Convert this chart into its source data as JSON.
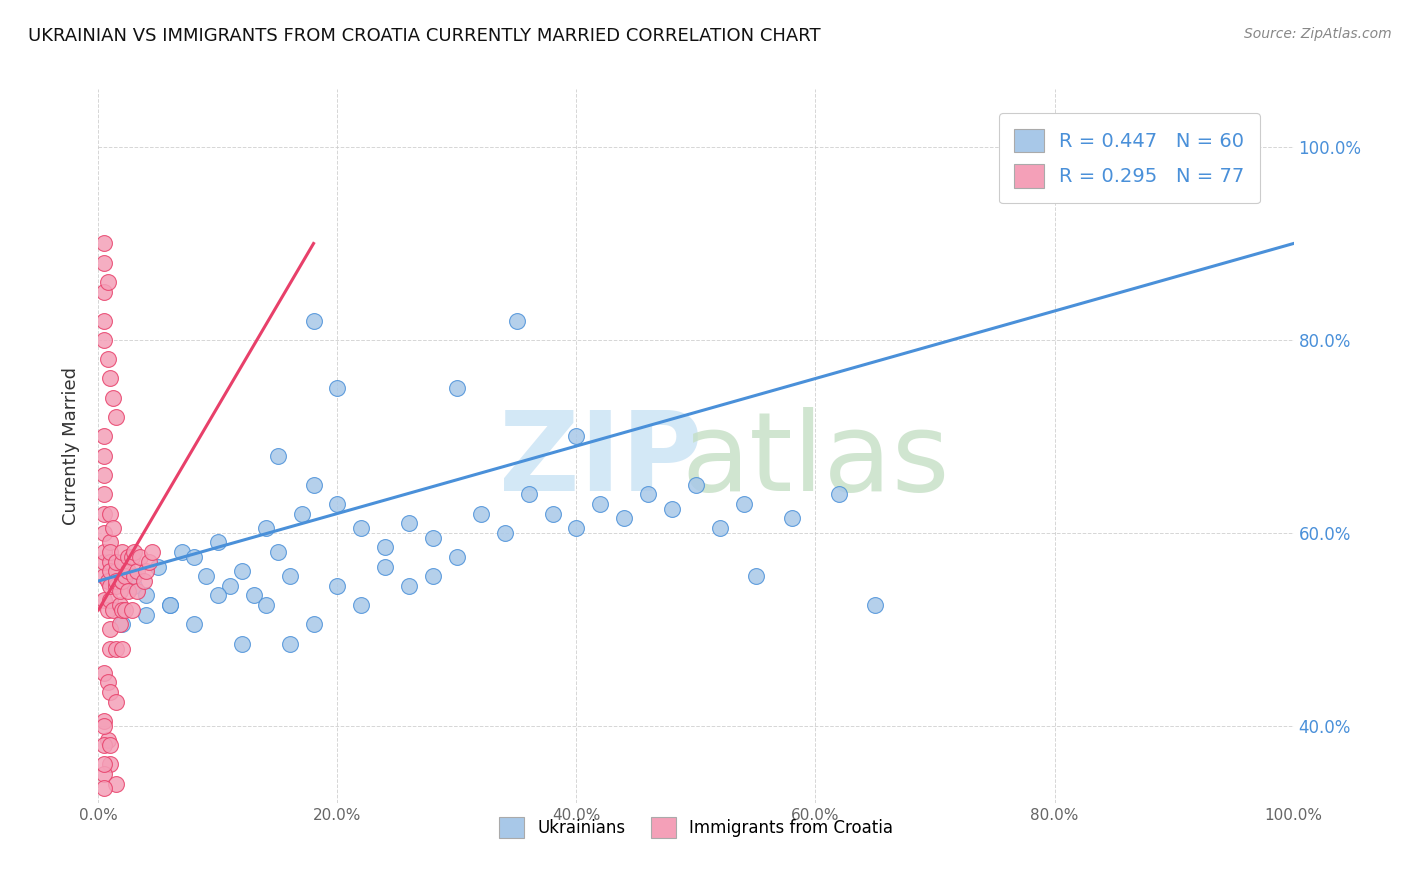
{
  "title": "UKRAINIAN VS IMMIGRANTS FROM CROATIA CURRENTLY MARRIED CORRELATION CHART",
  "source": "Source: ZipAtlas.com",
  "ylabel": "Currently Married",
  "xlim": [
    0.0,
    1.0
  ],
  "ylim": [
    0.32,
    1.06
  ],
  "x_tick_labels": [
    "0.0%",
    "20.0%",
    "40.0%",
    "60.0%",
    "80.0%",
    "100.0%"
  ],
  "x_tick_vals": [
    0.0,
    0.2,
    0.4,
    0.6,
    0.8,
    1.0
  ],
  "y_tick_labels": [
    "40.0%",
    "60.0%",
    "80.0%",
    "100.0%"
  ],
  "y_tick_vals": [
    0.4,
    0.6,
    0.8,
    1.0
  ],
  "blue_R": 0.447,
  "blue_N": 60,
  "pink_R": 0.295,
  "pink_N": 77,
  "blue_color": "#a8c8e8",
  "pink_color": "#f4a0b8",
  "blue_line_color": "#4a90d9",
  "pink_line_color": "#e8406a",
  "blue_scatter_x": [
    0.02,
    0.03,
    0.04,
    0.05,
    0.06,
    0.07,
    0.08,
    0.09,
    0.1,
    0.11,
    0.12,
    0.13,
    0.14,
    0.15,
    0.16,
    0.17,
    0.18,
    0.2,
    0.22,
    0.24,
    0.26,
    0.28,
    0.3,
    0.32,
    0.34,
    0.36,
    0.38,
    0.4,
    0.42,
    0.44,
    0.46,
    0.48,
    0.5,
    0.52,
    0.54,
    0.58,
    0.62,
    0.02,
    0.04,
    0.06,
    0.08,
    0.1,
    0.12,
    0.14,
    0.16,
    0.18,
    0.2,
    0.22,
    0.24,
    0.26,
    0.28,
    0.55,
    0.65,
    0.9,
    0.3,
    0.35,
    0.4,
    0.2,
    0.18,
    0.15
  ],
  "blue_scatter_y": [
    0.555,
    0.545,
    0.535,
    0.565,
    0.525,
    0.58,
    0.575,
    0.555,
    0.59,
    0.545,
    0.56,
    0.535,
    0.605,
    0.58,
    0.555,
    0.62,
    0.65,
    0.63,
    0.605,
    0.585,
    0.61,
    0.595,
    0.575,
    0.62,
    0.6,
    0.64,
    0.62,
    0.605,
    0.63,
    0.615,
    0.64,
    0.625,
    0.65,
    0.605,
    0.63,
    0.615,
    0.64,
    0.505,
    0.515,
    0.525,
    0.505,
    0.535,
    0.485,
    0.525,
    0.485,
    0.505,
    0.545,
    0.525,
    0.565,
    0.545,
    0.555,
    0.555,
    0.525,
    1.0,
    0.75,
    0.82,
    0.7,
    0.75,
    0.82,
    0.68
  ],
  "pink_scatter_x": [
    0.005,
    0.005,
    0.005,
    0.005,
    0.005,
    0.005,
    0.005,
    0.005,
    0.008,
    0.008,
    0.01,
    0.01,
    0.01,
    0.01,
    0.01,
    0.01,
    0.01,
    0.01,
    0.01,
    0.012,
    0.012,
    0.015,
    0.015,
    0.015,
    0.015,
    0.015,
    0.018,
    0.018,
    0.018,
    0.02,
    0.02,
    0.02,
    0.02,
    0.02,
    0.022,
    0.022,
    0.025,
    0.025,
    0.025,
    0.028,
    0.028,
    0.03,
    0.03,
    0.032,
    0.032,
    0.035,
    0.038,
    0.04,
    0.042,
    0.045,
    0.005,
    0.005,
    0.008,
    0.01,
    0.012,
    0.015,
    0.005,
    0.005,
    0.005,
    0.008,
    0.01,
    0.015,
    0.005,
    0.008,
    0.005,
    0.005,
    0.01,
    0.005,
    0.008,
    0.005,
    0.005,
    0.005,
    0.015,
    0.005,
    0.02,
    0.005,
    0.01
  ],
  "pink_scatter_y": [
    0.555,
    0.57,
    0.6,
    0.62,
    0.64,
    0.66,
    0.58,
    0.53,
    0.52,
    0.55,
    0.57,
    0.59,
    0.62,
    0.5,
    0.48,
    0.53,
    0.56,
    0.545,
    0.58,
    0.605,
    0.52,
    0.48,
    0.545,
    0.56,
    0.55,
    0.57,
    0.505,
    0.525,
    0.54,
    0.55,
    0.57,
    0.52,
    0.55,
    0.58,
    0.52,
    0.555,
    0.575,
    0.56,
    0.54,
    0.575,
    0.52,
    0.555,
    0.58,
    0.56,
    0.54,
    0.575,
    0.55,
    0.56,
    0.57,
    0.58,
    0.8,
    0.82,
    0.78,
    0.76,
    0.74,
    0.72,
    0.7,
    0.68,
    0.455,
    0.445,
    0.435,
    0.425,
    0.405,
    0.385,
    0.4,
    0.38,
    0.36,
    0.85,
    0.86,
    0.88,
    0.9,
    0.35,
    0.34,
    0.335,
    0.48,
    0.36,
    0.38
  ]
}
